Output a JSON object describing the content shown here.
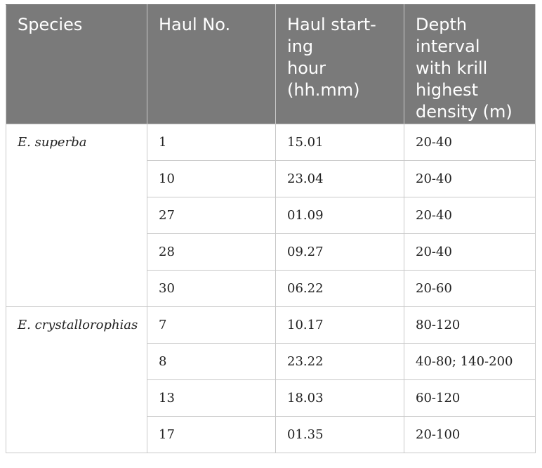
{
  "table": {
    "headers": [
      "Species",
      "Haul No.",
      "Haul start-\ning\nhour\n(hh.mm)",
      "Depth\ninterval\nwith krill\nhighest\ndensity (m)"
    ],
    "groups": [
      {
        "species": "E. superba",
        "rows": [
          {
            "haul": "1",
            "hour": "15.01",
            "depth": "20-40"
          },
          {
            "haul": "10",
            "hour": "23.04",
            "depth": "20-40"
          },
          {
            "haul": "27",
            "hour": "01.09",
            "depth": "20-40"
          },
          {
            "haul": "28",
            "hour": "09.27",
            "depth": "20-40"
          },
          {
            "haul": "30",
            "hour": "06.22",
            "depth": "20-60"
          }
        ]
      },
      {
        "species": "E. crystallorophias",
        "rows": [
          {
            "haul": "7",
            "hour": "10.17",
            "depth": "80-120"
          },
          {
            "haul": "8",
            "hour": "23.22",
            "depth": "40-80; 140-200"
          },
          {
            "haul": "13",
            "hour": "18.03",
            "depth": "60-120"
          },
          {
            "haul": "17",
            "hour": "01.35",
            "depth": "20-100"
          }
        ]
      }
    ]
  }
}
